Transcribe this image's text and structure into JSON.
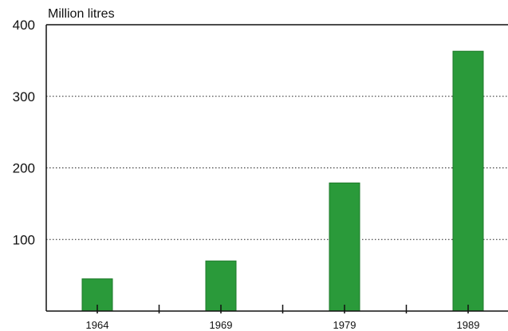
{
  "chart_data": {
    "type": "bar",
    "ylabel": "Million litres",
    "xlabel": "",
    "categories": [
      "1964",
      "1969",
      "1979",
      "1989"
    ],
    "values": [
      45,
      70,
      179,
      363
    ],
    "ylim": [
      0,
      400
    ],
    "yticks": [
      100,
      200,
      300,
      400
    ],
    "grid": "horizontal dotted",
    "bar_color": "#2a9a3a",
    "bar_edge_color": "#1e7a2b"
  }
}
